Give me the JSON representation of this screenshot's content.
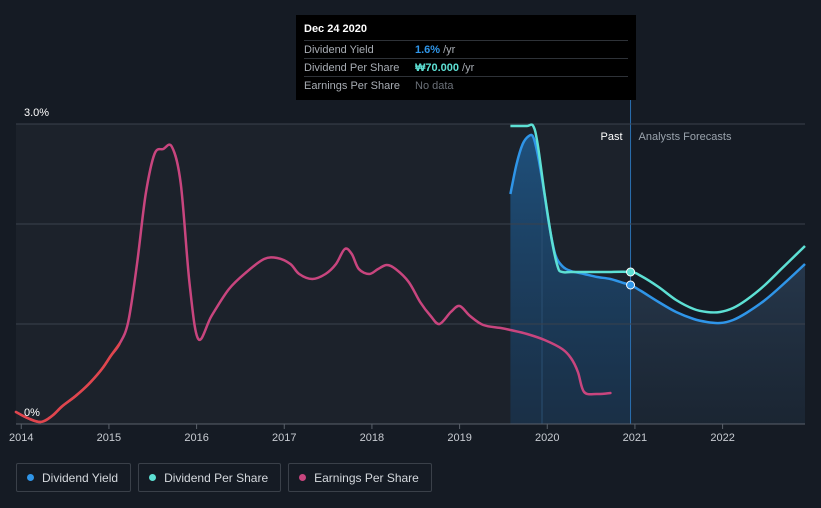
{
  "tooltip": {
    "date": "Dec 24 2020",
    "rows": [
      {
        "name": "Dividend Yield",
        "value": "1.6%",
        "unit": "/yr",
        "color": "#2f95e8"
      },
      {
        "name": "Dividend Per Share",
        "value": "₩70.000",
        "unit": "/yr",
        "color": "#5de0d4"
      },
      {
        "name": "Earnings Per Share",
        "nodata": "No data"
      }
    ]
  },
  "labels": {
    "past": "Past",
    "forecast": "Analysts Forecasts"
  },
  "colors": {
    "background": "#151b24",
    "past_region": "#1c222b",
    "dividend_yield": "#2f95e8",
    "dividend_per_share": "#5de0d4",
    "earnings_per_share": "#c8457e",
    "earnings_early": "#e0464c"
  },
  "legend": [
    {
      "label": "Dividend Yield",
      "color": "#2f95e8"
    },
    {
      "label": "Dividend Per Share",
      "color": "#5de0d4"
    },
    {
      "label": "Earnings Per Share",
      "color": "#c8457e"
    }
  ],
  "chart_data": {
    "type": "line",
    "title": "",
    "xlabel": "",
    "ylabel": "",
    "x_ticks": [
      "2014",
      "2015",
      "2016",
      "2017",
      "2018",
      "2019",
      "2020",
      "2021",
      "2022"
    ],
    "y_ticks": [
      "0%",
      "3.0%"
    ],
    "xlim": [
      2013.97,
      2022.97
    ],
    "ylim": [
      0,
      3.0
    ],
    "grid": true,
    "past_forecast_boundary": 2020.98,
    "series": [
      {
        "name": "Dividend Yield",
        "color": "#2f95e8",
        "x": [
          2019.61,
          2019.68,
          2019.75,
          2019.82,
          2019.87,
          2019.92,
          2019.98,
          2020.05,
          2020.12,
          2020.2,
          2020.3,
          2020.45,
          2020.6,
          2020.75,
          2020.9,
          2020.98,
          2021.1,
          2021.3,
          2021.5,
          2021.7,
          2021.85,
          2022.0,
          2022.15,
          2022.3,
          2022.5,
          2022.7,
          2022.97
        ],
        "y": [
          2.3,
          2.6,
          2.8,
          2.88,
          2.87,
          2.7,
          2.4,
          2.0,
          1.7,
          1.58,
          1.53,
          1.5,
          1.47,
          1.45,
          1.41,
          1.39,
          1.33,
          1.22,
          1.12,
          1.05,
          1.02,
          1.01,
          1.04,
          1.11,
          1.23,
          1.38,
          1.6
        ]
      },
      {
        "name": "Dividend Per Share",
        "color": "#5de0d4",
        "x": [
          2019.61,
          2019.7,
          2019.8,
          2019.87,
          2019.92,
          2020.0,
          2020.08,
          2020.15,
          2020.2,
          2020.3,
          2020.5,
          2020.7,
          2020.98,
          2021.1,
          2021.3,
          2021.5,
          2021.7,
          2021.85,
          2022.0,
          2022.15,
          2022.3,
          2022.5,
          2022.7,
          2022.97
        ],
        "y": [
          2.98,
          2.98,
          2.98,
          2.98,
          2.8,
          2.3,
          1.85,
          1.57,
          1.52,
          1.52,
          1.52,
          1.52,
          1.52,
          1.48,
          1.37,
          1.24,
          1.15,
          1.12,
          1.12,
          1.16,
          1.24,
          1.38,
          1.55,
          1.78
        ]
      },
      {
        "name": "Earnings Per Share",
        "color": "#c8457e",
        "x": [
          2013.97,
          2014.1,
          2014.25,
          2014.38,
          2014.5,
          2014.65,
          2014.8,
          2014.95,
          2015.05,
          2015.15,
          2015.25,
          2015.35,
          2015.45,
          2015.55,
          2015.65,
          2015.75,
          2015.85,
          2015.95,
          2016.05,
          2016.2,
          2016.4,
          2016.6,
          2016.8,
          2016.95,
          2017.1,
          2017.2,
          2017.35,
          2017.5,
          2017.62,
          2017.72,
          2017.8,
          2017.88,
          2018.0,
          2018.1,
          2018.2,
          2018.3,
          2018.45,
          2018.58,
          2018.7,
          2018.8,
          2018.93,
          2019.03,
          2019.15,
          2019.3,
          2019.5,
          2019.61,
          2019.8,
          2020.0,
          2020.2,
          2020.3,
          2020.38,
          2020.45,
          2020.6,
          2020.75
        ],
        "y": [
          0.12,
          0.06,
          0.02,
          0.08,
          0.18,
          0.28,
          0.4,
          0.55,
          0.68,
          0.8,
          1.02,
          1.6,
          2.3,
          2.7,
          2.75,
          2.77,
          2.4,
          1.4,
          0.85,
          1.08,
          1.35,
          1.52,
          1.65,
          1.66,
          1.6,
          1.5,
          1.45,
          1.5,
          1.6,
          1.75,
          1.7,
          1.55,
          1.5,
          1.55,
          1.59,
          1.55,
          1.42,
          1.22,
          1.08,
          1.0,
          1.12,
          1.18,
          1.08,
          0.99,
          0.96,
          0.94,
          0.9,
          0.84,
          0.75,
          0.66,
          0.52,
          0.32,
          0.3,
          0.31
        ]
      }
    ]
  }
}
